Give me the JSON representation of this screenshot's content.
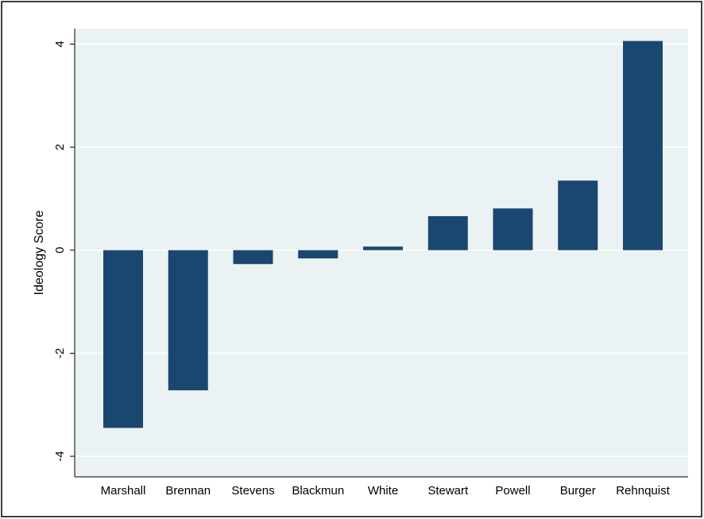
{
  "chart_data": {
    "type": "bar",
    "title": "",
    "xlabel": "",
    "ylabel": "Ideology Score",
    "categories": [
      "Marshall",
      "Brennan",
      "Stevens",
      "Blackmun",
      "White",
      "Stewart",
      "Powell",
      "Burger",
      "Rehnquist"
    ],
    "values": [
      -3.45,
      -2.72,
      -0.27,
      -0.16,
      0.07,
      0.66,
      0.81,
      1.35,
      4.06
    ],
    "ylim": [
      -4.4,
      4.3
    ],
    "yticks": [
      -4,
      -2,
      0,
      2,
      4
    ],
    "ytick_labels": [
      "-4",
      "-2",
      "0",
      "2",
      "4"
    ],
    "grid": true,
    "legend": "none",
    "colors": {
      "bar": "#1a476f",
      "plot_background": "#eaf2f3",
      "grid": "#ffffff",
      "frame": "#000000"
    }
  }
}
